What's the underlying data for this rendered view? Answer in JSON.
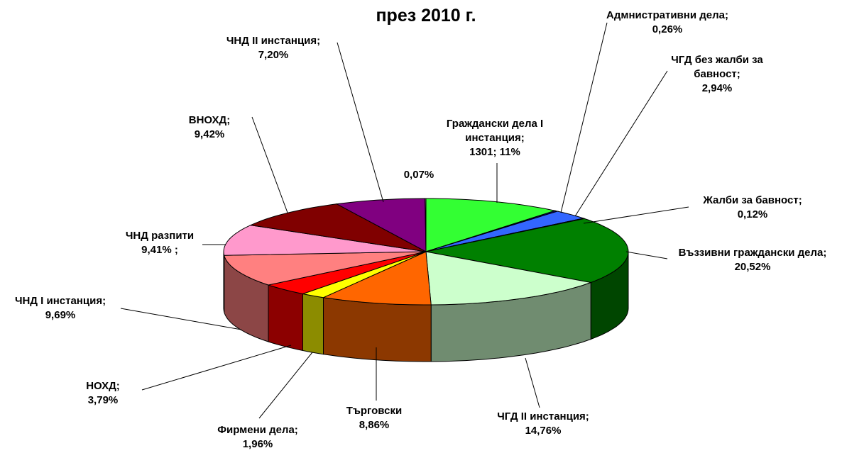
{
  "chart_data": {
    "type": "pie3d",
    "title": "през 2010 г.",
    "categories": [
      "Граждански дела I инстанция;",
      "Адмнистративни дела;",
      "ЧГД без жалби за бавност;",
      "Жалби за бавност;",
      "Въззивни граждански дела;",
      "ЧГД II инстанция;",
      "Търговски",
      "Фирмени дела;",
      "НОХД;",
      "ЧНД I инстанция;",
      "ЧНД разпити",
      "ВНОХД;",
      "ЧНД II инстанция;",
      null
    ],
    "values": [
      11,
      0.26,
      2.94,
      0.12,
      20.52,
      14.76,
      8.86,
      1.96,
      3.79,
      9.69,
      9.41,
      9.42,
      7.2,
      0.07
    ],
    "value_labels": [
      "1301; 11%",
      "0,26%",
      "2,94%",
      "0,12%",
      "20,52%",
      "14,76%",
      "8,86%",
      "1,96%",
      "3,79%",
      "9,69%",
      "9,41% ;",
      "9,42%",
      "7,20%",
      "0,07%"
    ],
    "colors": [
      "#33ff33",
      "#000080",
      "#3366ff",
      "#008080",
      "#008000",
      "#ccffcc",
      "#ff6600",
      "#ffff00",
      "#ff0000",
      "#ff8080",
      "#ff99cc",
      "#800000",
      "#800080",
      "#c0c0c0"
    ]
  }
}
